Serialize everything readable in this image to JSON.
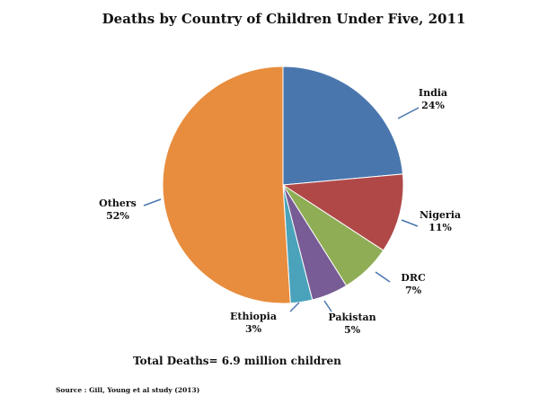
{
  "chart_data": {
    "type": "pie",
    "title": "Deaths by Country of Children Under Five, 2011",
    "categories": [
      "India",
      "Nigeria",
      "DRC",
      "Pakistan",
      "Ethiopia",
      "Others"
    ],
    "values": [
      24,
      11,
      7,
      5,
      3,
      52
    ],
    "value_labels": [
      "24%",
      "11%",
      "7%",
      "5%",
      "3%",
      "52%"
    ],
    "colors": [
      "#4a76ae",
      "#b04848",
      "#8fad55",
      "#775c95",
      "#4aa3ba",
      "#e88d3e"
    ],
    "legend": "none",
    "annotation": "Total Deaths= 6.9 million children",
    "source": "Source : Gill, Young et al study (2013)"
  }
}
